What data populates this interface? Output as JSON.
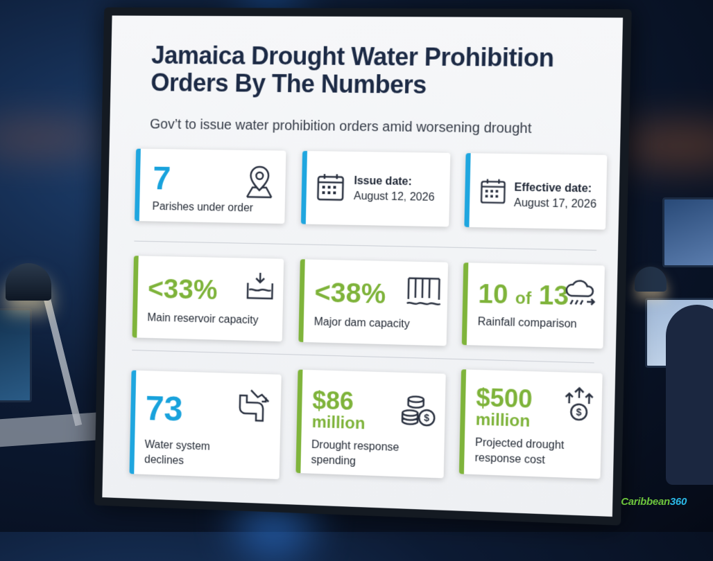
{
  "title": "Jamaica Drought Water Prohibition Orders By The Numbers",
  "subtitle": "Gov’t to issue water prohibition orders amid worsening drought",
  "row1": {
    "parishes": {
      "value": "7",
      "label": "Parishes under order",
      "icon": "map-pin-icon"
    },
    "issue": {
      "label": "Issue date:",
      "date": "August 12, 2026",
      "icon": "calendar-icon"
    },
    "effective": {
      "label": "Effective date:",
      "date": "August 17, 2026",
      "icon": "calendar-icon"
    }
  },
  "row2": {
    "reservoir": {
      "value": "<33%",
      "label": "Main reservoir capacity",
      "icon": "reservoir-icon"
    },
    "dam": {
      "value": "<38%",
      "label": "Major dam capacity",
      "icon": "dam-icon"
    },
    "rainfall": {
      "value_a": "10",
      "value_of": "of",
      "value_b": "13",
      "label": "Rainfall comparison",
      "icon": "rain-cloud-icon"
    }
  },
  "row3": {
    "water_system": {
      "value": "73",
      "label_1": "Water system",
      "label_2": "declines",
      "icon": "pipe-decline-icon"
    },
    "spending": {
      "value_1": "$86",
      "value_2": "million",
      "label_1": "Drought response",
      "label_2": "spending",
      "icon": "coins-icon"
    },
    "projected": {
      "value_1": "$500",
      "value_2": "million",
      "label_1": "Projected drought",
      "label_2": "response cost",
      "icon": "money-growth-icon"
    }
  },
  "brand": {
    "part_1": "Caribbean",
    "part_2": "360"
  },
  "colors": {
    "blue_accent": "#1fa6df",
    "green_accent": "#7fb43b",
    "title": "#1c2a45"
  }
}
